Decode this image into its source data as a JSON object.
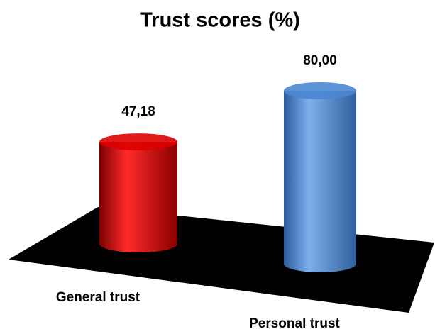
{
  "chart_data": {
    "type": "bar",
    "title": "Trust scores (%)",
    "categories": [
      "General trust",
      "Personal trust"
    ],
    "values": [
      47.18,
      80.0
    ],
    "value_labels": [
      "47,18",
      "80,00"
    ],
    "colors": [
      "#dd0000",
      "#4a86d2"
    ]
  }
}
